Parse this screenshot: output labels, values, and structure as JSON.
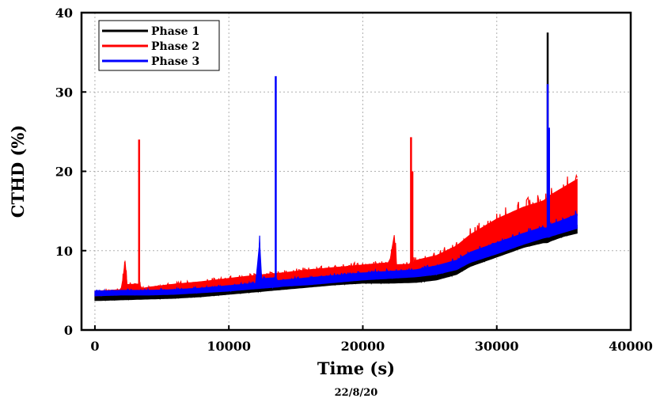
{
  "chart_data": {
    "type": "line",
    "xlabel": "Time (s)",
    "ylabel": "CTHD (%)",
    "caption": "22/8/20",
    "xlim": [
      -1000,
      40000
    ],
    "ylim": [
      0,
      40
    ],
    "xticks": [
      0,
      10000,
      20000,
      30000,
      40000
    ],
    "yticks": [
      0,
      10,
      20,
      30,
      40
    ],
    "grid": true,
    "legend_position": "top-left",
    "series": [
      {
        "name": "Phase 1",
        "color": "#000000",
        "x": [
          0,
          2000,
          4000,
          6000,
          8000,
          10000,
          12000,
          14000,
          16000,
          18000,
          20000,
          22000,
          24000,
          25500,
          27000,
          28000,
          30000,
          32000,
          33500,
          33800,
          33900,
          34000,
          35000,
          36000
        ],
        "low": [
          3.7,
          3.8,
          3.9,
          4.0,
          4.2,
          4.5,
          4.8,
          5.1,
          5.4,
          5.7,
          5.9,
          5.9,
          6.0,
          6.3,
          7.0,
          8.0,
          9.2,
          10.4,
          11.0,
          11.0,
          11.1,
          11.2,
          11.8,
          12.2
        ],
        "high": [
          4.3,
          4.4,
          4.5,
          4.6,
          4.8,
          5.1,
          5.4,
          5.8,
          6.0,
          6.3,
          6.5,
          6.6,
          6.7,
          7.0,
          7.8,
          8.8,
          10.1,
          11.3,
          11.9,
          37.5,
          12.0,
          12.1,
          12.7,
          13.2
        ]
      },
      {
        "name": "Phase 2",
        "color": "#ff0000",
        "x": [
          0,
          2000,
          3300,
          3400,
          4000,
          6000,
          8000,
          10000,
          12000,
          14000,
          16000,
          18000,
          20000,
          22000,
          23600,
          23700,
          23800,
          24000,
          25500,
          27000,
          28000,
          30000,
          32000,
          33500,
          34000,
          35000,
          36000
        ],
        "low": [
          4.3,
          4.5,
          4.6,
          4.6,
          4.7,
          4.9,
          5.2,
          5.5,
          5.8,
          6.1,
          6.4,
          6.6,
          6.8,
          7.0,
          7.1,
          7.1,
          7.1,
          7.2,
          7.5,
          8.2,
          9.2,
          10.6,
          11.9,
          12.8,
          13.2,
          13.8,
          14.4
        ],
        "high": [
          4.9,
          5.1,
          24.0,
          5.2,
          5.4,
          5.8,
          6.1,
          6.5,
          6.9,
          7.2,
          7.6,
          7.9,
          8.2,
          8.5,
          24.3,
          20.0,
          8.7,
          8.8,
          9.4,
          10.6,
          12.0,
          14.0,
          15.5,
          16.3,
          17.0,
          18.0,
          19.0
        ]
      },
      {
        "name": "Phase 3",
        "color": "#0000ff",
        "x": [
          0,
          2000,
          4000,
          6000,
          8000,
          10000,
          12000,
          13500,
          13600,
          14000,
          16000,
          18000,
          20000,
          22000,
          24000,
          25500,
          27000,
          28000,
          30000,
          32000,
          33500,
          33800,
          33900,
          34000,
          35000,
          36000
        ],
        "low": [
          4.3,
          4.4,
          4.4,
          4.5,
          4.7,
          4.9,
          5.2,
          5.4,
          5.4,
          5.5,
          5.7,
          6.0,
          6.3,
          6.5,
          6.7,
          7.0,
          7.6,
          8.5,
          9.6,
          10.8,
          11.6,
          11.7,
          11.7,
          11.8,
          12.3,
          12.8
        ],
        "high": [
          4.9,
          5.0,
          5.0,
          5.1,
          5.3,
          5.6,
          5.9,
          32.0,
          6.2,
          6.3,
          6.6,
          6.9,
          7.2,
          7.4,
          7.6,
          8.1,
          8.8,
          9.8,
          11.0,
          12.2,
          13.0,
          31.0,
          25.5,
          13.3,
          13.9,
          14.6
        ]
      }
    ]
  }
}
